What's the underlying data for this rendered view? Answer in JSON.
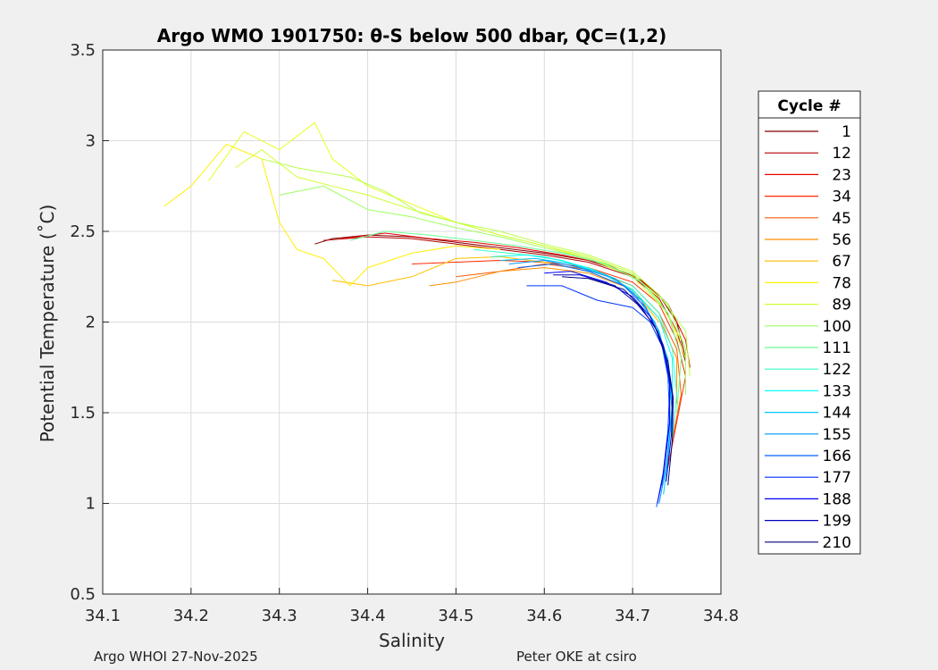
{
  "chart_data": {
    "type": "line",
    "title": "Argo WMO 1901750: θ-S below 500 dbar,  QC=(1,2)",
    "xlabel": "Salinity",
    "ylabel": "Potential Temperature (˚C)",
    "xlim": [
      34.1,
      34.8
    ],
    "ylim": [
      0.5,
      3.5
    ],
    "xticks": [
      "34.1",
      "34.2",
      "34.3",
      "34.4",
      "34.5",
      "34.6",
      "34.7",
      "34.8"
    ],
    "yticks": [
      "0.5",
      "1",
      "1.5",
      "2",
      "2.5",
      "3",
      "3.5"
    ],
    "grid": true,
    "legend": {
      "title": "Cycle #",
      "placement": "outside-right",
      "entries": [
        {
          "label": "1",
          "color": "#800000"
        },
        {
          "label": "12",
          "color": "#b40000"
        },
        {
          "label": "23",
          "color": "#e60000"
        },
        {
          "label": "34",
          "color": "#ff2a00"
        },
        {
          "label": "45",
          "color": "#ff5a00"
        },
        {
          "label": "56",
          "color": "#ff8c00"
        },
        {
          "label": "67",
          "color": "#ffbf00"
        },
        {
          "label": "78",
          "color": "#fff000"
        },
        {
          "label": "89",
          "color": "#cfff30"
        },
        {
          "label": "100",
          "color": "#9dff62"
        },
        {
          "label": "111",
          "color": "#6aff95"
        },
        {
          "label": "122",
          "color": "#38ffc7"
        },
        {
          "label": "133",
          "color": "#06fff9"
        },
        {
          "label": "144",
          "color": "#00c8ff"
        },
        {
          "label": "155",
          "color": "#0096ff"
        },
        {
          "label": "166",
          "color": "#0064ff"
        },
        {
          "label": "177",
          "color": "#0032ff"
        },
        {
          "label": "188",
          "color": "#0000f0"
        },
        {
          "label": "199",
          "color": "#0000b8"
        },
        {
          "label": "210",
          "color": "#000080"
        }
      ]
    },
    "series": [
      {
        "color": "#800000",
        "points": [
          [
            34.34,
            2.43
          ],
          [
            34.36,
            2.46
          ],
          [
            34.4,
            2.48
          ],
          [
            34.45,
            2.47
          ],
          [
            34.5,
            2.44
          ],
          [
            34.55,
            2.41
          ],
          [
            34.6,
            2.38
          ],
          [
            34.65,
            2.34
          ],
          [
            34.7,
            2.26
          ],
          [
            34.73,
            2.15
          ],
          [
            34.75,
            2.0
          ],
          [
            34.76,
            1.8
          ]
        ]
      },
      {
        "color": "#b40000",
        "points": [
          [
            34.35,
            2.45
          ],
          [
            34.4,
            2.47
          ],
          [
            34.45,
            2.46
          ],
          [
            34.5,
            2.43
          ],
          [
            34.55,
            2.4
          ],
          [
            34.6,
            2.37
          ],
          [
            34.65,
            2.33
          ],
          [
            34.7,
            2.25
          ],
          [
            34.73,
            2.13
          ],
          [
            34.75,
            1.95
          ],
          [
            34.76,
            1.78
          ]
        ]
      },
      {
        "color": "#e60000",
        "points": [
          [
            34.37,
            2.46
          ],
          [
            34.42,
            2.49
          ],
          [
            34.47,
            2.46
          ],
          [
            34.52,
            2.44
          ],
          [
            34.57,
            2.41
          ],
          [
            34.62,
            2.37
          ],
          [
            34.67,
            2.32
          ],
          [
            34.71,
            2.23
          ],
          [
            34.74,
            2.1
          ],
          [
            34.76,
            1.9
          ],
          [
            34.765,
            1.75
          ]
        ]
      },
      {
        "color": "#ff2a00",
        "points": [
          [
            34.45,
            2.32
          ],
          [
            34.5,
            2.33
          ],
          [
            34.55,
            2.34
          ],
          [
            34.6,
            2.33
          ],
          [
            34.65,
            2.3
          ],
          [
            34.7,
            2.22
          ],
          [
            34.73,
            2.1
          ],
          [
            34.75,
            1.9
          ],
          [
            34.76,
            1.7
          ],
          [
            34.75,
            1.45
          ],
          [
            34.74,
            1.2
          ]
        ]
      },
      {
        "color": "#ff5a00",
        "points": [
          [
            34.5,
            2.25
          ],
          [
            34.55,
            2.28
          ],
          [
            34.6,
            2.32
          ],
          [
            34.65,
            2.29
          ],
          [
            34.7,
            2.2
          ],
          [
            34.73,
            2.05
          ],
          [
            34.75,
            1.85
          ],
          [
            34.755,
            1.6
          ],
          [
            34.745,
            1.35
          ]
        ]
      },
      {
        "color": "#ff8c00",
        "points": [
          [
            34.47,
            2.2
          ],
          [
            34.5,
            2.22
          ],
          [
            34.55,
            2.28
          ],
          [
            34.6,
            2.3
          ],
          [
            34.65,
            2.27
          ],
          [
            34.7,
            2.18
          ],
          [
            34.73,
            2.02
          ],
          [
            34.75,
            1.8
          ],
          [
            34.75,
            1.55
          ]
        ]
      },
      {
        "color": "#ffbf00",
        "points": [
          [
            34.36,
            2.23
          ],
          [
            34.4,
            2.2
          ],
          [
            34.45,
            2.25
          ],
          [
            34.5,
            2.35
          ],
          [
            34.55,
            2.36
          ],
          [
            34.6,
            2.33
          ],
          [
            34.65,
            2.28
          ],
          [
            34.7,
            2.18
          ],
          [
            34.73,
            2.0
          ]
        ]
      },
      {
        "color": "#fff000",
        "points": [
          [
            34.17,
            2.64
          ],
          [
            34.2,
            2.75
          ],
          [
            34.24,
            2.98
          ],
          [
            34.28,
            2.9
          ],
          [
            34.3,
            2.55
          ],
          [
            34.32,
            2.4
          ],
          [
            34.35,
            2.35
          ],
          [
            34.38,
            2.2
          ],
          [
            34.4,
            2.3
          ],
          [
            34.45,
            2.38
          ],
          [
            34.5,
            2.42
          ],
          [
            34.55,
            2.4
          ]
        ]
      },
      {
        "color": "#e8ff20",
        "points": [
          [
            34.22,
            2.78
          ],
          [
            34.26,
            3.05
          ],
          [
            34.3,
            2.95
          ],
          [
            34.34,
            3.1
          ],
          [
            34.36,
            2.9
          ],
          [
            34.4,
            2.75
          ],
          [
            34.45,
            2.65
          ],
          [
            34.5,
            2.55
          ],
          [
            34.55,
            2.48
          ],
          [
            34.6,
            2.42
          ],
          [
            34.65,
            2.35
          ],
          [
            34.7,
            2.25
          ],
          [
            34.74,
            2.05
          ],
          [
            34.76,
            1.8
          ]
        ]
      },
      {
        "color": "#cfff30",
        "points": [
          [
            34.25,
            2.85
          ],
          [
            34.28,
            2.95
          ],
          [
            34.32,
            2.8
          ],
          [
            34.36,
            2.75
          ],
          [
            34.4,
            2.7
          ],
          [
            34.45,
            2.62
          ],
          [
            34.5,
            2.55
          ],
          [
            34.55,
            2.48
          ],
          [
            34.6,
            2.42
          ],
          [
            34.65,
            2.36
          ],
          [
            34.7,
            2.27
          ],
          [
            34.73,
            2.12
          ],
          [
            34.755,
            1.9
          ]
        ]
      },
      {
        "color": "#b8ff48",
        "points": [
          [
            34.28,
            2.9
          ],
          [
            34.32,
            2.85
          ],
          [
            34.38,
            2.8
          ],
          [
            34.42,
            2.72
          ],
          [
            34.46,
            2.6
          ],
          [
            34.5,
            2.55
          ],
          [
            34.55,
            2.5
          ],
          [
            34.6,
            2.43
          ],
          [
            34.65,
            2.37
          ],
          [
            34.7,
            2.28
          ],
          [
            34.73,
            2.15
          ],
          [
            34.76,
            1.95
          ],
          [
            34.765,
            1.7
          ]
        ]
      },
      {
        "color": "#9dff62",
        "points": [
          [
            34.3,
            2.7
          ],
          [
            34.35,
            2.75
          ],
          [
            34.4,
            2.62
          ],
          [
            34.45,
            2.58
          ],
          [
            34.5,
            2.52
          ],
          [
            34.55,
            2.47
          ],
          [
            34.6,
            2.41
          ],
          [
            34.65,
            2.35
          ],
          [
            34.7,
            2.26
          ],
          [
            34.74,
            2.1
          ],
          [
            34.76,
            1.85
          ],
          [
            34.76,
            1.6
          ]
        ]
      },
      {
        "color": "#6aff95",
        "points": [
          [
            34.38,
            2.45
          ],
          [
            34.42,
            2.5
          ],
          [
            34.47,
            2.48
          ],
          [
            34.52,
            2.45
          ],
          [
            34.57,
            2.42
          ],
          [
            34.62,
            2.38
          ],
          [
            34.67,
            2.32
          ],
          [
            34.71,
            2.22
          ],
          [
            34.74,
            2.05
          ],
          [
            34.755,
            1.8
          ],
          [
            34.75,
            1.5
          ]
        ]
      },
      {
        "color": "#38ffc7",
        "points": [
          [
            34.52,
            2.4
          ],
          [
            34.56,
            2.38
          ],
          [
            34.6,
            2.36
          ],
          [
            34.65,
            2.3
          ],
          [
            34.7,
            2.2
          ],
          [
            34.73,
            2.05
          ],
          [
            34.745,
            1.85
          ],
          [
            34.75,
            1.6
          ],
          [
            34.745,
            1.35
          ]
        ]
      },
      {
        "color": "#06fff9",
        "points": [
          [
            34.54,
            2.36
          ],
          [
            34.58,
            2.37
          ],
          [
            34.62,
            2.34
          ],
          [
            34.66,
            2.28
          ],
          [
            34.7,
            2.18
          ],
          [
            34.73,
            2.02
          ],
          [
            34.745,
            1.8
          ],
          [
            34.745,
            1.55
          ],
          [
            34.74,
            1.3
          ]
        ]
      },
      {
        "color": "#00c8ff",
        "points": [
          [
            34.55,
            2.34
          ],
          [
            34.59,
            2.35
          ],
          [
            34.63,
            2.32
          ],
          [
            34.67,
            2.26
          ],
          [
            34.7,
            2.17
          ],
          [
            34.725,
            2.0
          ],
          [
            34.74,
            1.8
          ],
          [
            34.745,
            1.55
          ],
          [
            34.74,
            1.25
          ],
          [
            34.735,
            1.05
          ]
        ]
      },
      {
        "color": "#0096ff",
        "points": [
          [
            34.56,
            2.32
          ],
          [
            34.6,
            2.34
          ],
          [
            34.64,
            2.3
          ],
          [
            34.68,
            2.24
          ],
          [
            34.71,
            2.12
          ],
          [
            34.73,
            1.95
          ],
          [
            34.74,
            1.75
          ],
          [
            34.745,
            1.5
          ],
          [
            34.738,
            1.2
          ],
          [
            34.73,
            1.0
          ]
        ]
      },
      {
        "color": "#0064ff",
        "points": [
          [
            34.57,
            2.3
          ],
          [
            34.61,
            2.32
          ],
          [
            34.65,
            2.28
          ],
          [
            34.69,
            2.2
          ],
          [
            34.715,
            2.08
          ],
          [
            34.732,
            1.9
          ],
          [
            34.74,
            1.7
          ],
          [
            34.742,
            1.45
          ],
          [
            34.735,
            1.15
          ],
          [
            34.727,
            0.98
          ]
        ]
      },
      {
        "color": "#0032ff",
        "points": [
          [
            34.58,
            2.2
          ],
          [
            34.62,
            2.2
          ],
          [
            34.66,
            2.12
          ],
          [
            34.7,
            2.08
          ],
          [
            34.72,
            2.0
          ],
          [
            34.735,
            1.85
          ],
          [
            34.742,
            1.65
          ],
          [
            34.74,
            1.4
          ],
          [
            34.733,
            1.1
          ]
        ]
      },
      {
        "color": "#0000f0",
        "points": [
          [
            34.6,
            2.27
          ],
          [
            34.63,
            2.28
          ],
          [
            34.67,
            2.22
          ],
          [
            34.7,
            2.14
          ],
          [
            34.72,
            2.03
          ],
          [
            34.735,
            1.87
          ],
          [
            34.742,
            1.68
          ],
          [
            34.742,
            1.45
          ],
          [
            34.736,
            1.2
          ],
          [
            34.728,
            1.0
          ]
        ]
      },
      {
        "color": "#0000b8",
        "points": [
          [
            34.61,
            2.26
          ],
          [
            34.64,
            2.26
          ],
          [
            34.68,
            2.2
          ],
          [
            34.705,
            2.1
          ],
          [
            34.725,
            1.98
          ],
          [
            34.738,
            1.8
          ],
          [
            34.745,
            1.6
          ],
          [
            34.744,
            1.38
          ],
          [
            34.738,
            1.12
          ]
        ]
      },
      {
        "color": "#000080",
        "points": [
          [
            34.62,
            2.25
          ],
          [
            34.65,
            2.24
          ],
          [
            34.69,
            2.18
          ],
          [
            34.71,
            2.08
          ],
          [
            34.728,
            1.95
          ],
          [
            34.74,
            1.78
          ],
          [
            34.746,
            1.58
          ],
          [
            34.745,
            1.35
          ],
          [
            34.74,
            1.1
          ]
        ]
      }
    ]
  },
  "footer": {
    "left": "Argo WHOI 27-Nov-2025",
    "right": "Peter OKE at csiro"
  }
}
